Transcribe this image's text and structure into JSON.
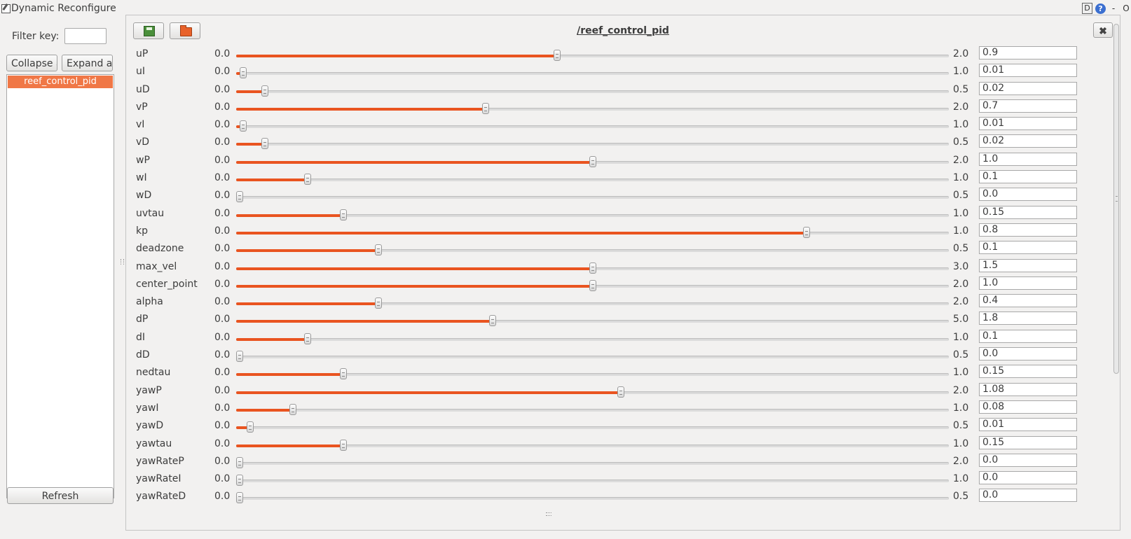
{
  "window": {
    "title": "Dynamic Reconfigure",
    "controls": [
      "D",
      "?",
      "-",
      "O"
    ]
  },
  "sidebar": {
    "filter_label": "Filter key:",
    "filter_value": "",
    "collapse_label": "Collapse all",
    "expand_label": "Expand all",
    "nodes": [
      "reef_control_pid"
    ],
    "refresh_label": "Refresh"
  },
  "panel": {
    "node_title": "/reef_control_pid",
    "params": [
      {
        "name": "uP",
        "min": "0.0",
        "max": "2.0",
        "value": "0.9",
        "fraction": 0.45
      },
      {
        "name": "uI",
        "min": "0.0",
        "max": "1.0",
        "value": "0.01",
        "fraction": 0.01
      },
      {
        "name": "uD",
        "min": "0.0",
        "max": "0.5",
        "value": "0.02",
        "fraction": 0.04
      },
      {
        "name": "vP",
        "min": "0.0",
        "max": "2.0",
        "value": "0.7",
        "fraction": 0.35
      },
      {
        "name": "vI",
        "min": "0.0",
        "max": "1.0",
        "value": "0.01",
        "fraction": 0.01
      },
      {
        "name": "vD",
        "min": "0.0",
        "max": "0.5",
        "value": "0.02",
        "fraction": 0.04
      },
      {
        "name": "wP",
        "min": "0.0",
        "max": "2.0",
        "value": "1.0",
        "fraction": 0.5
      },
      {
        "name": "wI",
        "min": "0.0",
        "max": "1.0",
        "value": "0.1",
        "fraction": 0.1
      },
      {
        "name": "wD",
        "min": "0.0",
        "max": "0.5",
        "value": "0.0",
        "fraction": 0.0
      },
      {
        "name": "uvtau",
        "min": "0.0",
        "max": "1.0",
        "value": "0.15",
        "fraction": 0.15
      },
      {
        "name": "kp",
        "min": "0.0",
        "max": "1.0",
        "value": "0.8",
        "fraction": 0.8
      },
      {
        "name": "deadzone",
        "min": "0.0",
        "max": "0.5",
        "value": "0.1",
        "fraction": 0.2
      },
      {
        "name": "max_vel",
        "min": "0.0",
        "max": "3.0",
        "value": "1.5",
        "fraction": 0.5
      },
      {
        "name": "center_point",
        "min": "0.0",
        "max": "2.0",
        "value": "1.0",
        "fraction": 0.5
      },
      {
        "name": "alpha",
        "min": "0.0",
        "max": "2.0",
        "value": "0.4",
        "fraction": 0.2
      },
      {
        "name": "dP",
        "min": "0.0",
        "max": "5.0",
        "value": "1.8",
        "fraction": 0.36
      },
      {
        "name": "dI",
        "min": "0.0",
        "max": "1.0",
        "value": "0.1",
        "fraction": 0.1
      },
      {
        "name": "dD",
        "min": "0.0",
        "max": "0.5",
        "value": "0.0",
        "fraction": 0.0
      },
      {
        "name": "nedtau",
        "min": "0.0",
        "max": "1.0",
        "value": "0.15",
        "fraction": 0.15
      },
      {
        "name": "yawP",
        "min": "0.0",
        "max": "2.0",
        "value": "1.08",
        "fraction": 0.54
      },
      {
        "name": "yawI",
        "min": "0.0",
        "max": "1.0",
        "value": "0.08",
        "fraction": 0.08
      },
      {
        "name": "yawD",
        "min": "0.0",
        "max": "0.5",
        "value": "0.01",
        "fraction": 0.02
      },
      {
        "name": "yawtau",
        "min": "0.0",
        "max": "1.0",
        "value": "0.15",
        "fraction": 0.15
      },
      {
        "name": "yawRateP",
        "min": "0.0",
        "max": "2.0",
        "value": "0.0",
        "fraction": 0.0
      },
      {
        "name": "yawRateI",
        "min": "0.0",
        "max": "1.0",
        "value": "0.0",
        "fraction": 0.0
      },
      {
        "name": "yawRateD",
        "min": "0.0",
        "max": "0.5",
        "value": "0.0",
        "fraction": 0.0
      }
    ]
  },
  "colors": {
    "accent": "#e95420",
    "selection": "#f07746",
    "background": "#f2f1f0"
  }
}
